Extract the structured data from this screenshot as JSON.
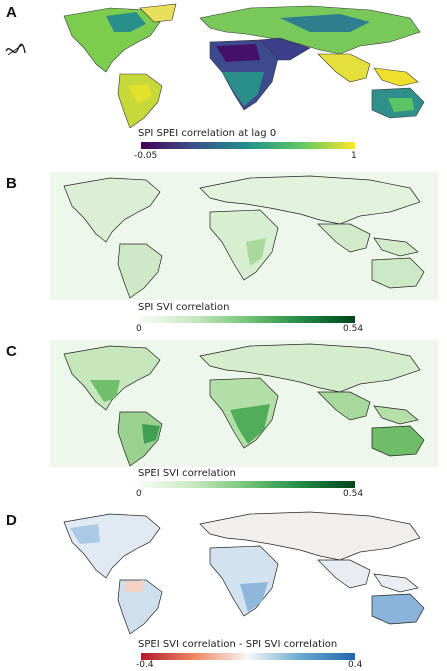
{
  "panels": [
    {
      "letter": "A",
      "colorbar_title": "SPI  SPEI correlation at lag 0",
      "min_label": "-0.05",
      "max_label": "1",
      "colors": [
        "#440154",
        "#3b528b",
        "#21918c",
        "#5ec962",
        "#fde725"
      ],
      "land_color": "#6cc05a",
      "ocean_color": "#ffffff"
    },
    {
      "letter": "B",
      "colorbar_title": "SPI  SVI correlation",
      "min_label": "0",
      "max_label": "0.54",
      "colors": [
        "#f7fcf5",
        "#c7e9c0",
        "#74c476",
        "#238b45",
        "#00441b"
      ],
      "land_color": "#dcefd6",
      "ocean_color": "#eef7eb"
    },
    {
      "letter": "C",
      "colorbar_title": "SPEI  SVI correlation",
      "min_label": "0",
      "max_label": "0.54",
      "colors": [
        "#f7fcf5",
        "#c7e9c0",
        "#74c476",
        "#238b45",
        "#00441b"
      ],
      "land_color": "#b5dfa9",
      "ocean_color": "#eef7eb"
    },
    {
      "letter": "D",
      "colorbar_title": "SPEI  SVI correlation - SPI  SVI correlation",
      "min_label": "-0.4",
      "max_label": "0.4",
      "colors": [
        "#b2182b",
        "#ef8a62",
        "#f7f7f7",
        "#67a9cf",
        "#2166ac"
      ],
      "land_color": "#e3edf6",
      "ocean_color": "#ffffff"
    }
  ]
}
